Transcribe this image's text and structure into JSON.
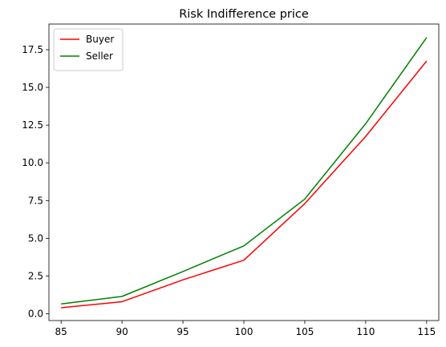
{
  "chart_data": {
    "type": "line",
    "title": "Risk Indifference price",
    "xlabel": "",
    "ylabel": "",
    "x": [
      85,
      90,
      95,
      100,
      105,
      110,
      115
    ],
    "xlim": [
      84,
      116
    ],
    "ylim": [
      -0.45,
      19.2
    ],
    "xticks": [
      85,
      90,
      95,
      100,
      105,
      110,
      115
    ],
    "xtick_labels": [
      "85",
      "90",
      "95",
      "100",
      "105",
      "110",
      "115"
    ],
    "yticks": [
      0.0,
      2.5,
      5.0,
      7.5,
      10.0,
      12.5,
      15.0,
      17.5
    ],
    "ytick_labels": [
      "0.0",
      "2.5",
      "5.0",
      "7.5",
      "10.0",
      "12.5",
      "15.0",
      "17.5"
    ],
    "grid": false,
    "legend_position": "top-left",
    "series": [
      {
        "name": "Buyer",
        "color": "#ff0000",
        "values": [
          0.4,
          0.8,
          2.25,
          3.55,
          7.3,
          11.75,
          16.75
        ]
      },
      {
        "name": "Seller",
        "color": "#008000",
        "values": [
          0.65,
          1.15,
          2.8,
          4.5,
          7.6,
          12.6,
          18.3
        ]
      }
    ]
  }
}
